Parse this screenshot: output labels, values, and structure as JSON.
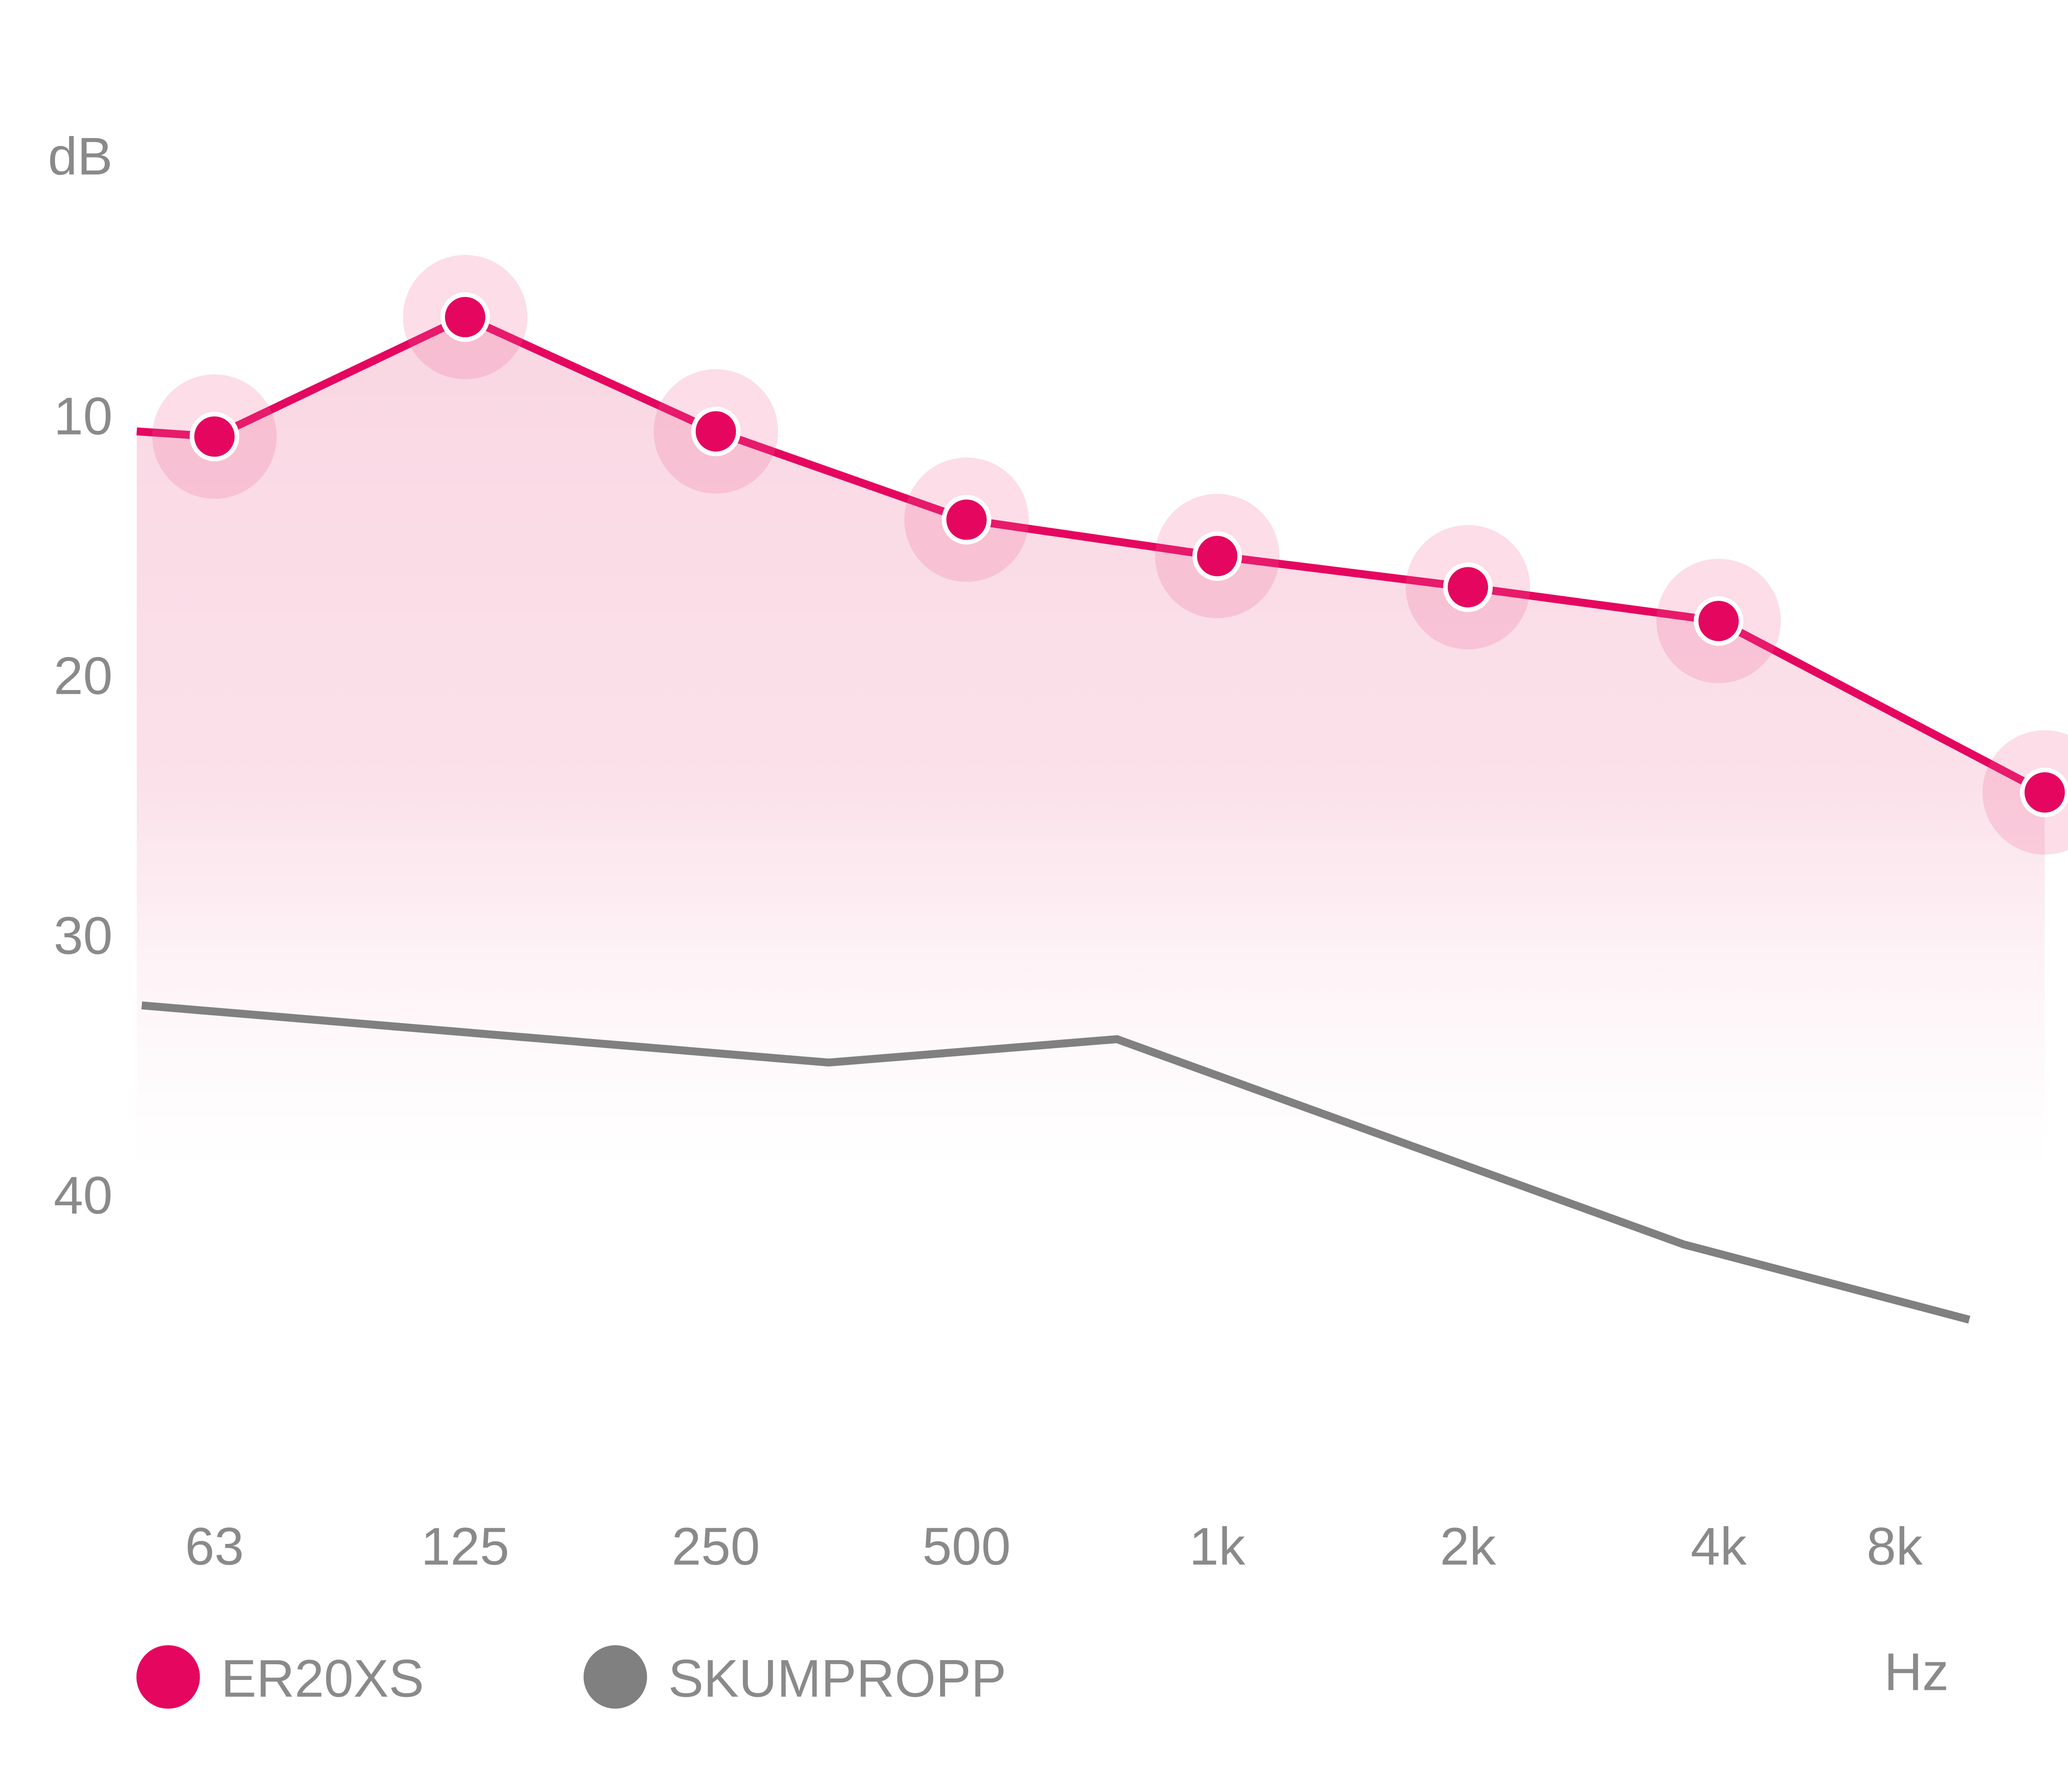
{
  "chart_data": {
    "type": "line",
    "title": "",
    "xlabel": "Hz",
    "ylabel": "dB",
    "categories": [
      "63",
      "125",
      "250",
      "500",
      "1k",
      "2k",
      "4k",
      "8k"
    ],
    "y_ticks": [
      {
        "value": 0,
        "label": "dB"
      },
      {
        "value": 10,
        "label": "10"
      },
      {
        "value": 20,
        "label": "20"
      },
      {
        "value": 30,
        "label": "30"
      },
      {
        "value": 40,
        "label": "40"
      },
      {
        "value": 50,
        "label": ""
      }
    ],
    "ylim": [
      0,
      50
    ],
    "y_inverted": true,
    "grid": true,
    "legend_position": "bottom-left",
    "series": [
      {
        "name": "ER20XS",
        "color": "#E5065F",
        "markers": true,
        "filled": true,
        "values": [
          10.8,
          6.2,
          10.6,
          14.0,
          15.4,
          16.6,
          17.9,
          24.5
        ],
        "line_start": {
          "x_index": -0.31,
          "value": 10.6
        }
      },
      {
        "name": "SKUMPROPP",
        "color": "#808080",
        "markers": false,
        "filled": false,
        "points": [
          {
            "x_index": -0.29,
            "value": 32.7
          },
          {
            "x_index": 2.45,
            "value": 34.9
          },
          {
            "x_index": 3.6,
            "value": 34.0
          },
          {
            "x_index": 5.86,
            "value": 41.9
          },
          {
            "x_index": 7.0,
            "value": 44.8
          }
        ]
      }
    ]
  }
}
